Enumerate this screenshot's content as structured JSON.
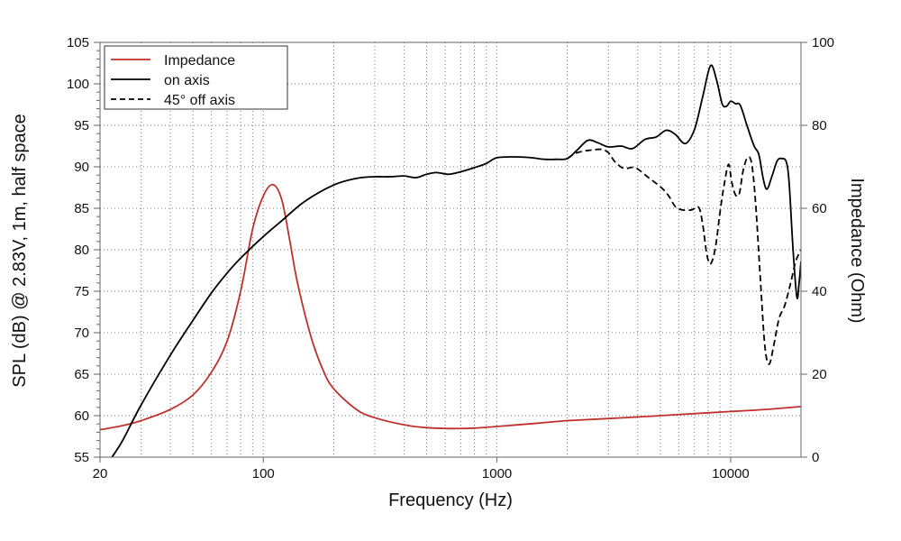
{
  "chart_data": {
    "type": "line",
    "title": "",
    "xlabel": "Frequency (Hz)",
    "ylabel": "SPL (dB) @ 2.83V, 1m, half space",
    "y2label": "Impedance (Ohm)",
    "xscale": "log",
    "xlim": [
      20,
      20000
    ],
    "ylim": [
      55,
      105
    ],
    "y2lim": [
      0,
      100
    ],
    "grid": true,
    "legend_position": "top-left",
    "x_ticks": [
      {
        "value": 20,
        "label": "20"
      },
      {
        "value": 100,
        "label": "100"
      },
      {
        "value": 1000,
        "label": "1000"
      },
      {
        "value": 10000,
        "label": "10000"
      }
    ],
    "y_ticks": [
      {
        "value": 55,
        "label": "55"
      },
      {
        "value": 60,
        "label": "60"
      },
      {
        "value": 65,
        "label": "65"
      },
      {
        "value": 70,
        "label": "70"
      },
      {
        "value": 75,
        "label": "75"
      },
      {
        "value": 80,
        "label": "80"
      },
      {
        "value": 85,
        "label": "85"
      },
      {
        "value": 90,
        "label": "90"
      },
      {
        "value": 95,
        "label": "95"
      },
      {
        "value": 100,
        "label": "100"
      },
      {
        "value": 105,
        "label": "105"
      }
    ],
    "y2_ticks": [
      {
        "value": 0,
        "label": "0"
      },
      {
        "value": 20,
        "label": "20"
      },
      {
        "value": 40,
        "label": "40"
      },
      {
        "value": 60,
        "label": "60"
      },
      {
        "value": 80,
        "label": "80"
      },
      {
        "value": 100,
        "label": "100"
      }
    ],
    "series": [
      {
        "name": "Impedance",
        "axis": "right",
        "color": "#c0312b",
        "dash": "solid",
        "points": [
          [
            20,
            6.6
          ],
          [
            25,
            7.6
          ],
          [
            30,
            8.8
          ],
          [
            40,
            11.5
          ],
          [
            50,
            15
          ],
          [
            60,
            20.5
          ],
          [
            70,
            28
          ],
          [
            80,
            40
          ],
          [
            90,
            55
          ],
          [
            100,
            63
          ],
          [
            110,
            65.7
          ],
          [
            120,
            62
          ],
          [
            130,
            52
          ],
          [
            140,
            42
          ],
          [
            160,
            29
          ],
          [
            180,
            21
          ],
          [
            200,
            16.5
          ],
          [
            250,
            11.5
          ],
          [
            300,
            9.5
          ],
          [
            400,
            7.8
          ],
          [
            500,
            7.1
          ],
          [
            650,
            6.9
          ],
          [
            800,
            7.0
          ],
          [
            1000,
            7.4
          ],
          [
            1500,
            8.2
          ],
          [
            2000,
            8.8
          ],
          [
            3000,
            9.3
          ],
          [
            5000,
            10.0
          ],
          [
            7000,
            10.5
          ],
          [
            10000,
            11.0
          ],
          [
            15000,
            11.6
          ],
          [
            20000,
            12.2
          ]
        ]
      },
      {
        "name": "on axis",
        "axis": "left",
        "color": "#000000",
        "dash": "solid",
        "points": [
          [
            22.5,
            55
          ],
          [
            25,
            57
          ],
          [
            30,
            61.3
          ],
          [
            40,
            67.3
          ],
          [
            50,
            71.5
          ],
          [
            60,
            74.8
          ],
          [
            70,
            77.2
          ],
          [
            80,
            79
          ],
          [
            100,
            81.6
          ],
          [
            120,
            83.5
          ],
          [
            150,
            85.8
          ],
          [
            200,
            87.8
          ],
          [
            250,
            88.6
          ],
          [
            300,
            88.8
          ],
          [
            350,
            88.8
          ],
          [
            400,
            88.9
          ],
          [
            450,
            88.7
          ],
          [
            500,
            89.1
          ],
          [
            550,
            89.3
          ],
          [
            620,
            89.1
          ],
          [
            700,
            89.4
          ],
          [
            800,
            89.9
          ],
          [
            900,
            90.4
          ],
          [
            1000,
            91.1
          ],
          [
            1200,
            91.2
          ],
          [
            1400,
            91.1
          ],
          [
            1600,
            90.9
          ],
          [
            1800,
            90.9
          ],
          [
            2000,
            91.0
          ],
          [
            2200,
            92.0
          ],
          [
            2450,
            93.2
          ],
          [
            2700,
            92.9
          ],
          [
            3000,
            92.4
          ],
          [
            3400,
            92.5
          ],
          [
            3800,
            92.2
          ],
          [
            4300,
            93.3
          ],
          [
            4800,
            93.6
          ],
          [
            5300,
            94.4
          ],
          [
            5800,
            93.9
          ],
          [
            6400,
            92.8
          ],
          [
            7000,
            94.5
          ],
          [
            7600,
            98.5
          ],
          [
            8200,
            102.2
          ],
          [
            8700,
            100.5
          ],
          [
            9200,
            97.6
          ],
          [
            9600,
            97.3
          ],
          [
            10000,
            97.9
          ],
          [
            10500,
            97.6
          ],
          [
            11000,
            97.4
          ],
          [
            11800,
            94.8
          ],
          [
            12600,
            92.5
          ],
          [
            13200,
            91.5
          ],
          [
            13800,
            88.5
          ],
          [
            14300,
            87.3
          ],
          [
            15000,
            88.8
          ],
          [
            15800,
            90.7
          ],
          [
            16500,
            91.0
          ],
          [
            17300,
            90.6
          ],
          [
            17800,
            88
          ],
          [
            18500,
            80
          ],
          [
            19200,
            74.3
          ],
          [
            19600,
            75.8
          ],
          [
            20000,
            78.6
          ]
        ]
      },
      {
        "name": "45° off axis",
        "axis": "left",
        "color": "#000000",
        "dash": "dashed",
        "points": [
          [
            2000,
            91.0
          ],
          [
            2200,
            91.7
          ],
          [
            2500,
            92.0
          ],
          [
            2800,
            92.1
          ],
          [
            3000,
            91.7
          ],
          [
            3200,
            90.6
          ],
          [
            3500,
            89.8
          ],
          [
            3900,
            89.9
          ],
          [
            4400,
            88.8
          ],
          [
            5000,
            87.6
          ],
          [
            5400,
            86.6
          ],
          [
            5800,
            85.2
          ],
          [
            6200,
            84.8
          ],
          [
            6800,
            84.8
          ],
          [
            7300,
            85.1
          ],
          [
            7600,
            83.0
          ],
          [
            7900,
            79.5
          ],
          [
            8200,
            78.3
          ],
          [
            8600,
            80.2
          ],
          [
            9000,
            84.5
          ],
          [
            9400,
            88.0
          ],
          [
            9800,
            90.3
          ],
          [
            10100,
            88.2
          ],
          [
            10500,
            86.6
          ],
          [
            10900,
            86.8
          ],
          [
            11300,
            89.5
          ],
          [
            11800,
            91.1
          ],
          [
            12300,
            90.4
          ],
          [
            12800,
            85.5
          ],
          [
            13400,
            76.5
          ],
          [
            14000,
            68.5
          ],
          [
            14600,
            66.2
          ],
          [
            15300,
            68.5
          ],
          [
            16100,
            71.7
          ],
          [
            17000,
            73.2
          ],
          [
            18000,
            75.8
          ],
          [
            19000,
            78.6
          ],
          [
            20000,
            80.0
          ]
        ]
      }
    ]
  }
}
